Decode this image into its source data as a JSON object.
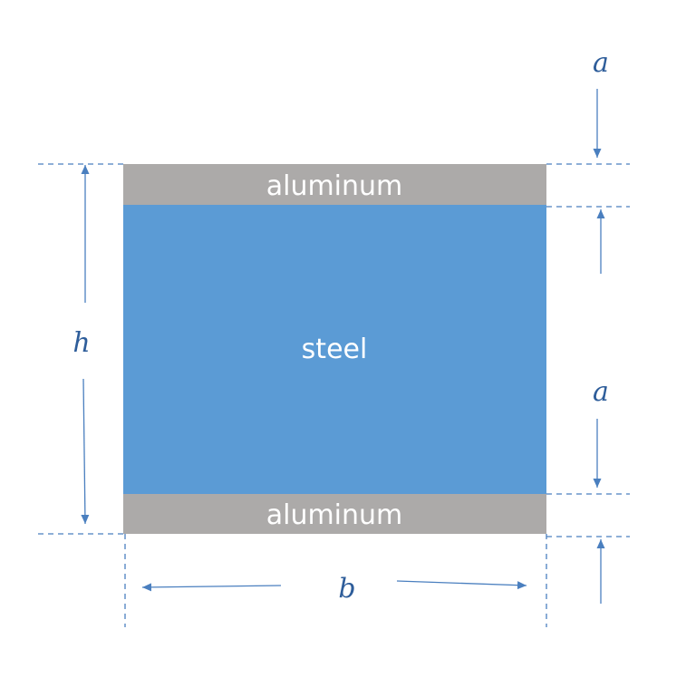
{
  "colors": {
    "aluminum": "#acaaa9",
    "steel": "#5b9bd5",
    "dimension": "#4a7fbf",
    "label_text": "#ffffff",
    "dim_text": "#2e5d9a"
  },
  "layers": {
    "top": "aluminum",
    "middle": "steel",
    "bottom": "aluminum"
  },
  "dimensions": {
    "height": "h",
    "width": "b",
    "top_thickness": "a",
    "bottom_thickness": "a"
  }
}
